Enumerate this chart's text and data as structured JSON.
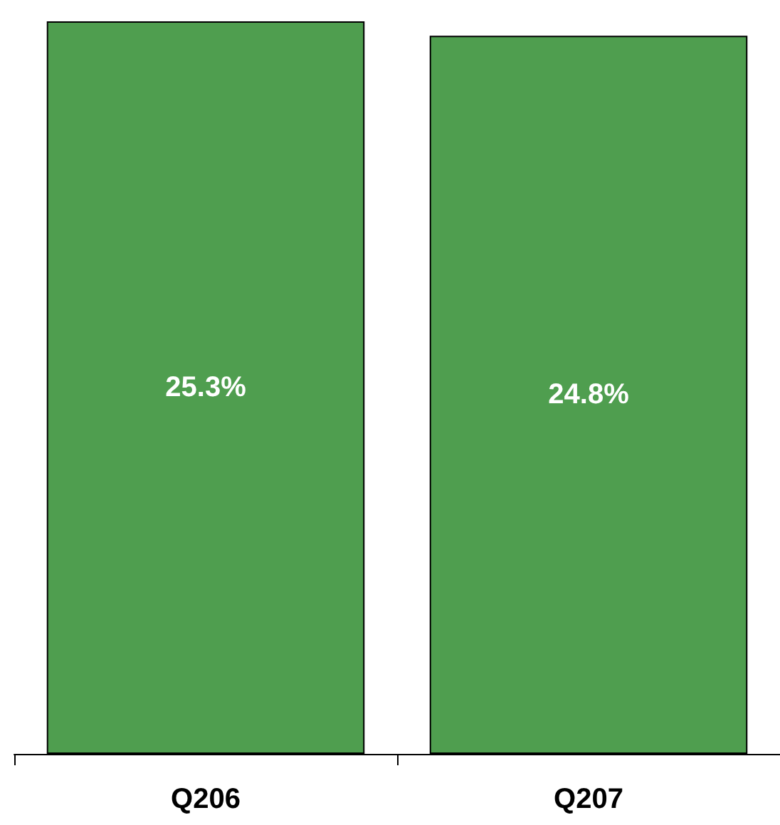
{
  "chart_data": {
    "type": "bar",
    "categories": [
      "Q206",
      "Q207"
    ],
    "values": [
      25.3,
      24.8
    ],
    "value_labels": [
      "25.3%",
      "24.8%"
    ],
    "color": "#4f9e4f",
    "tick_labels": "x",
    "grid": false
  }
}
